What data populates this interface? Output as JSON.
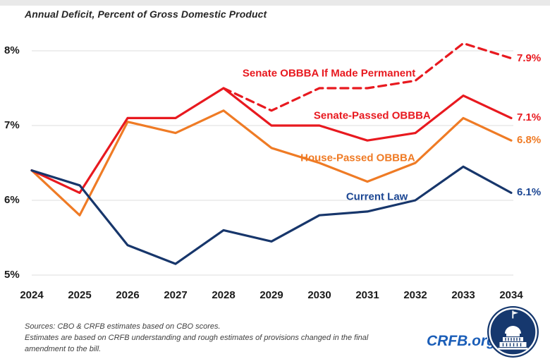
{
  "page": {
    "title": "Annual Deficit, Percent of Gross Domestic Product"
  },
  "chart_data": {
    "type": "line",
    "title": "Annual Deficit, Percent of Gross Domestic Product",
    "x_years": [
      2024,
      2025,
      2026,
      2027,
      2028,
      2029,
      2030,
      2031,
      2032,
      2033,
      2034
    ],
    "y_axis": {
      "unit": "%",
      "range": [
        5,
        8.2
      ],
      "grid": true,
      "ticks": [
        {
          "value": 8,
          "label": "8%"
        },
        {
          "value": 7,
          "label": "7%"
        },
        {
          "value": 6,
          "label": "6%"
        },
        {
          "value": 5,
          "label": "5%"
        }
      ]
    },
    "legend_position": "inline-labels",
    "series": [
      {
        "id": "current-law",
        "name": "Current Law",
        "color": "#17366B",
        "label_color": "#1B4693",
        "style": "solid",
        "start_year": 2024,
        "values": [
          6.4,
          6.2,
          5.4,
          5.15,
          5.6,
          5.45,
          5.8,
          5.85,
          6.0,
          6.45,
          6.1
        ],
        "end_label": "6.1%",
        "label_at": {
          "year": 2031.2,
          "value": 6.05
        }
      },
      {
        "id": "house-passed",
        "name": "House-Passed OBBBA",
        "color": "#EF7B25",
        "label_color": "#EF7B25",
        "style": "solid",
        "start_year": 2024,
        "values": [
          6.4,
          5.8,
          7.05,
          6.9,
          7.2,
          6.7,
          6.5,
          6.25,
          6.5,
          7.1,
          6.8
        ],
        "end_label": "6.8%",
        "label_at": {
          "year": 2030.8,
          "value": 6.57
        }
      },
      {
        "id": "senate-passed",
        "name": "Senate-Passed OBBBA",
        "color": "#E8191F",
        "label_color": "#E8191F",
        "style": "solid",
        "start_year": 2024,
        "values": [
          6.4,
          6.1,
          7.1,
          7.1,
          7.5,
          7.0,
          7.0,
          6.8,
          6.9,
          7.4,
          7.1
        ],
        "end_label": "7.1%",
        "label_at": {
          "year": 2031.1,
          "value": 7.13
        }
      },
      {
        "id": "senate-permanent",
        "name": "Senate OBBBA If Made Permanent",
        "color": "#E8191F",
        "label_color": "#E8191F",
        "style": "dashed",
        "start_year": 2028,
        "values": [
          7.5,
          7.2,
          7.5,
          7.5,
          7.6,
          8.1,
          7.9
        ],
        "end_label": "7.9%",
        "label_at": {
          "year": 2030.2,
          "value": 7.7
        }
      }
    ]
  },
  "footer": {
    "source_lines": [
      "Sources: CBO & CRFB estimates based on CBO scores.",
      "Estimates are based on CRFB understanding and rough estimates of provisions changed in the final",
      "amendment to the bill."
    ],
    "brand": "CRFB.org"
  },
  "colors": {
    "red": "#E8191F",
    "orange": "#EF7B25",
    "navy": "#17366B",
    "brand_blue": "#1B5EB8",
    "gridline": "#E4E4E4"
  }
}
